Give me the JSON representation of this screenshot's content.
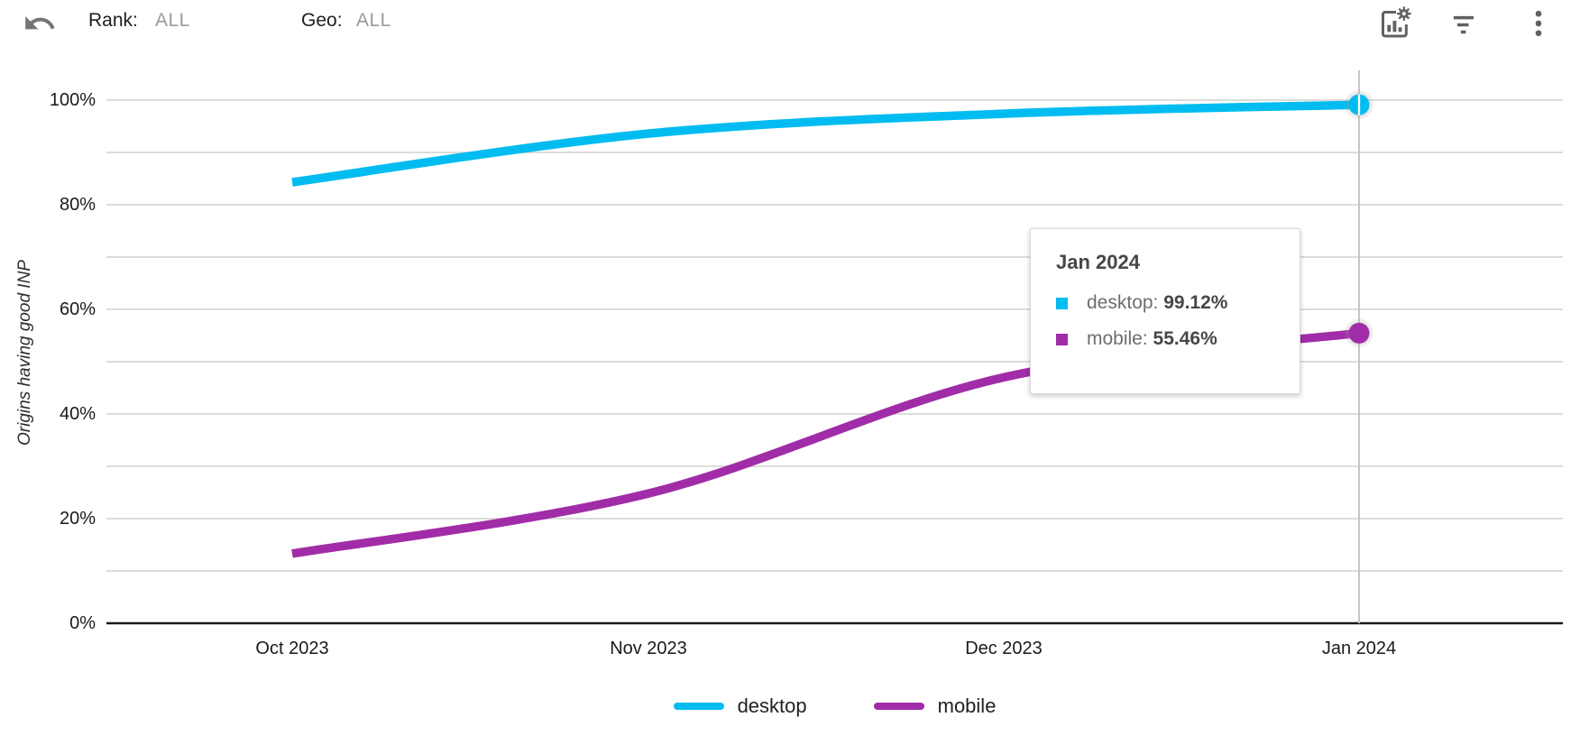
{
  "toolbar": {
    "rank_label": "Rank:",
    "rank_value": "ALL",
    "geo_label": "Geo:",
    "geo_value": "ALL",
    "icons": [
      "undo-icon",
      "chart-settings-icon",
      "filter-icon",
      "kebab-menu-icon"
    ]
  },
  "chart_data": {
    "type": "line",
    "title": "",
    "xlabel": "",
    "ylabel": "Origins having good INP",
    "x": [
      "Oct 2023",
      "Nov 2023",
      "Dec 2023",
      "Jan 2024"
    ],
    "y_ticks": [
      {
        "label": "0%",
        "v": 0
      },
      {
        "label": "20%",
        "v": 20
      },
      {
        "label": "40%",
        "v": 40
      },
      {
        "label": "60%",
        "v": 60
      },
      {
        "label": "80%",
        "v": 80
      },
      {
        "label": "100%",
        "v": 100
      }
    ],
    "ylim": [
      0,
      100
    ],
    "grid": "horizontal lines every 10%",
    "legend_position": "bottom",
    "curve": "smooth",
    "series": [
      {
        "name": "desktop",
        "color": "#00BCF0",
        "values": [
          84.3,
          93.6,
          97.4,
          99.12
        ]
      },
      {
        "name": "mobile",
        "color": "#A12CA8",
        "values": [
          13.3,
          24.8,
          47.0,
          55.46
        ]
      }
    ],
    "highlighted_x": "Jan 2024"
  },
  "tooltip": {
    "title": "Jan 2024",
    "rows": [
      {
        "label": "desktop: ",
        "value": "99.12%",
        "color": "#00BCF0"
      },
      {
        "label": "mobile: ",
        "value": "55.46%",
        "color": "#A12CA8"
      }
    ]
  },
  "legend": [
    {
      "label": "desktop",
      "color": "#00BCF0"
    },
    {
      "label": "mobile",
      "color": "#A12CA8"
    }
  ],
  "colors": {
    "desktop": "#00BCF0",
    "mobile": "#A12CA8",
    "gridline": "#dcdcdc",
    "axis": "#1a1a1a",
    "guide_line": "#c6c6c6",
    "icon_gray": "#616161"
  }
}
